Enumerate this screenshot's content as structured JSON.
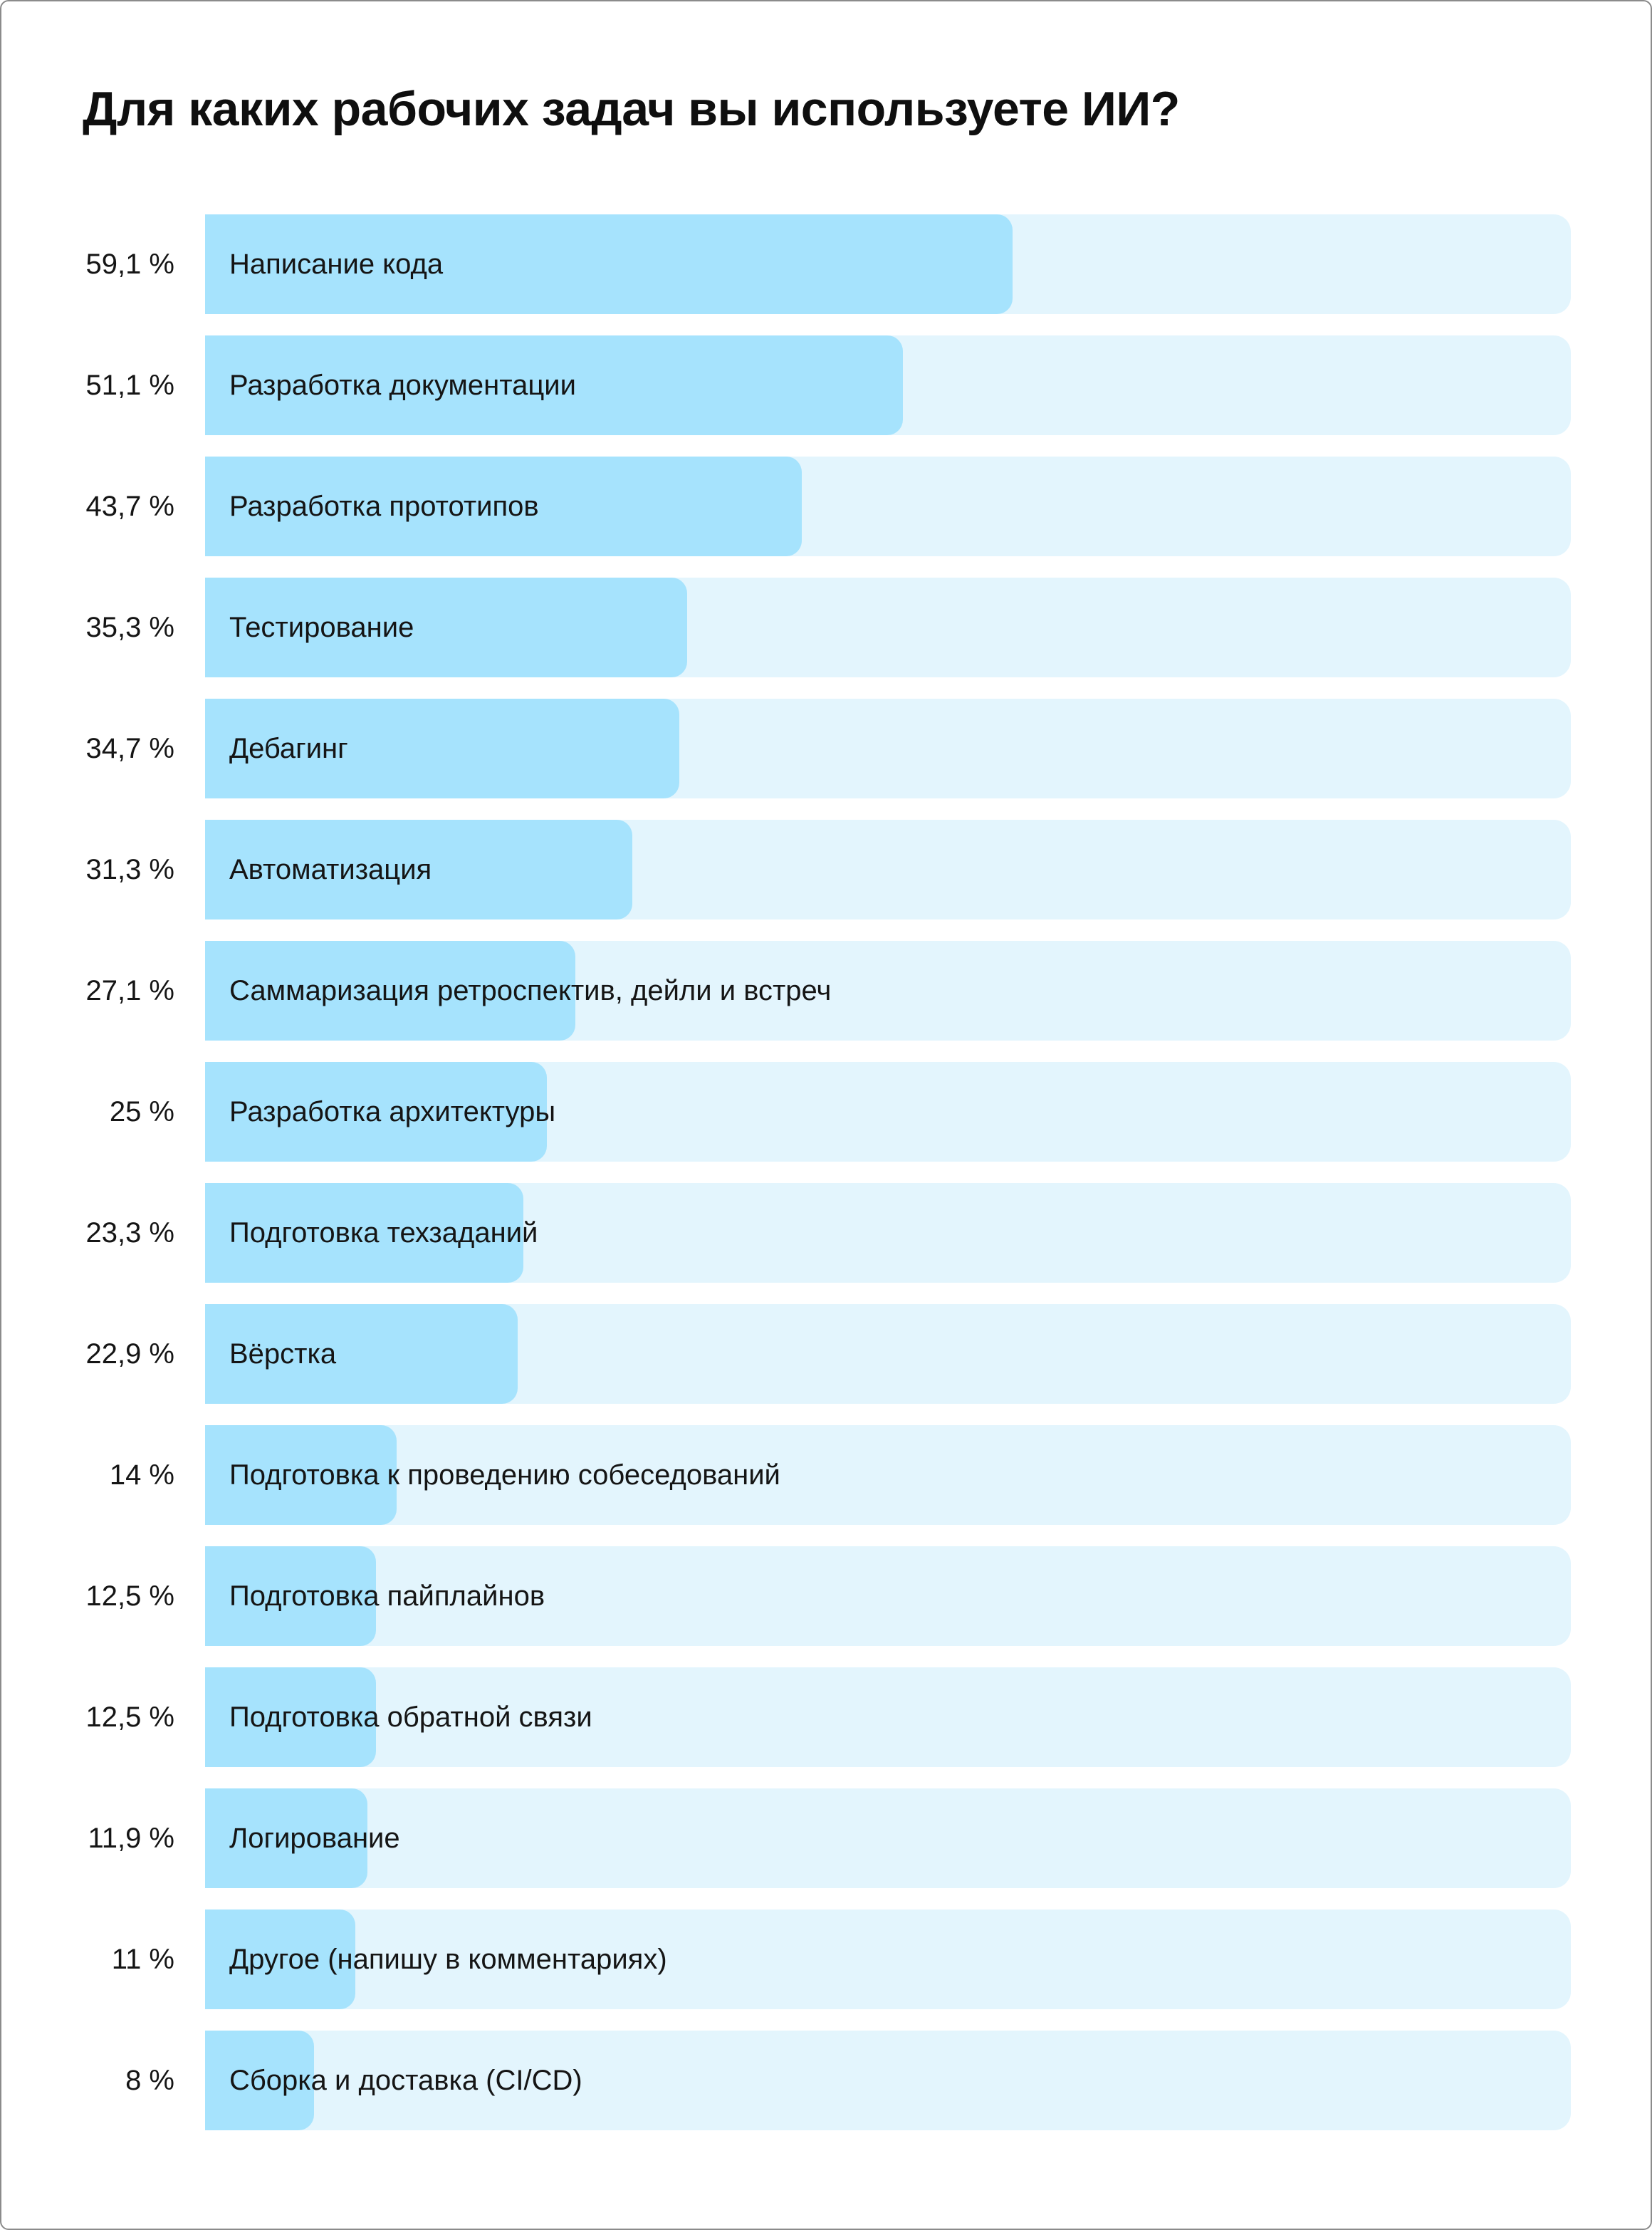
{
  "page": {
    "background": "#ffffff",
    "border_color": "#8b8b8b"
  },
  "chart_data": {
    "type": "bar",
    "orientation": "horizontal",
    "title": "Для каких рабочих задач вы используете ИИ?",
    "categories": [
      "Написание кода",
      "Разработка документации",
      "Разработка прототипов",
      "Тестирование",
      "Дебагинг",
      "Автоматизация",
      "Саммаризация ретроспектив, дейли и встреч",
      "Разработка архитектуры",
      "Подготовка техзаданий",
      "Вёрстка",
      "Подготовка к проведению собеседований",
      "Подготовка пайплайнов",
      "Подготовка обратной связи",
      "Логирование",
      "Другое (напишу в комментариях)",
      "Сборка и доставка (CI/CD)"
    ],
    "values": [
      59.1,
      51.1,
      43.7,
      35.3,
      34.7,
      31.3,
      27.1,
      25,
      23.3,
      22.9,
      14,
      12.5,
      12.5,
      11.9,
      11,
      8
    ],
    "value_labels": [
      "59,1 %",
      "51,1 %",
      "43,7 %",
      "35,3 %",
      "34,7 %",
      "31,3 %",
      "27,1 %",
      "25 %",
      "23,3 %",
      "22,9 %",
      "14 %",
      "12,5 %",
      "12,5 %",
      "11,9 %",
      "11 %",
      "8 %"
    ],
    "xlim": [
      0,
      100
    ],
    "bar_fill_color": "#a6e3fd",
    "bar_track_color": "#e3f5fd",
    "grid": false,
    "legend": false
  }
}
